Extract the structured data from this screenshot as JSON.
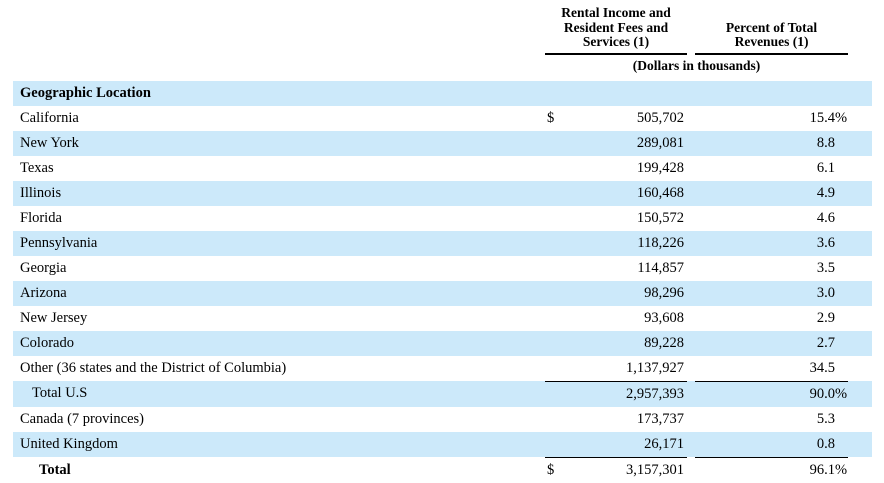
{
  "header": {
    "amount_col_lines": [
      "Rental Income and",
      "Resident Fees and",
      "Services (1)"
    ],
    "percent_col_lines": [
      "Percent of Total",
      "Revenues (1)"
    ],
    "units_note": "(Dollars in thousands)"
  },
  "section_title": "Geographic Location",
  "rows": [
    {
      "label": "California",
      "dollar": "$",
      "amount": "505,702",
      "pct": "15.4",
      "pct_sign": "%"
    },
    {
      "label": "New York",
      "amount": "289,081",
      "pct": "8.8"
    },
    {
      "label": "Texas",
      "amount": "199,428",
      "pct": "6.1"
    },
    {
      "label": "Illinois",
      "amount": "160,468",
      "pct": "4.9"
    },
    {
      "label": "Florida",
      "amount": "150,572",
      "pct": "4.6"
    },
    {
      "label": "Pennsylvania",
      "amount": "118,226",
      "pct": "3.6"
    },
    {
      "label": "Georgia",
      "amount": "114,857",
      "pct": "3.5"
    },
    {
      "label": "Arizona",
      "amount": "98,296",
      "pct": "3.0"
    },
    {
      "label": "New Jersey",
      "amount": "93,608",
      "pct": "2.9"
    },
    {
      "label": "Colorado",
      "amount": "89,228",
      "pct": "2.7"
    },
    {
      "label": "Other (36 states and the District of Columbia)",
      "amount": "1,137,927",
      "pct": "34.5"
    },
    {
      "label": "Total U.S",
      "amount": "2,957,393",
      "pct": "90.0",
      "pct_sign": "%"
    },
    {
      "label": "Canada (7 provinces)",
      "amount": "173,737",
      "pct": "5.3"
    },
    {
      "label": "United Kingdom",
      "amount": "26,171",
      "pct": "0.8"
    },
    {
      "label": "Total",
      "dollar": "$",
      "amount": "3,157,301",
      "pct": "96.1",
      "pct_sign": "%"
    }
  ],
  "colors": {
    "row_highlight": "#cce9fa",
    "text": "#000000",
    "rule": "#000000"
  }
}
